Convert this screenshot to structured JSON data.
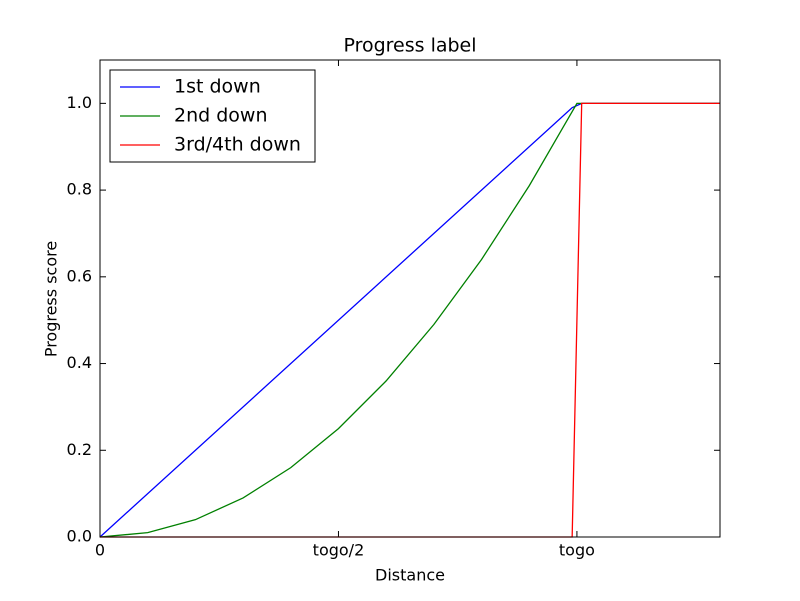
{
  "chart_data": {
    "type": "line",
    "title": "Progress label",
    "x_label": "Distance",
    "y_label": "Progress score",
    "xlim": [
      0,
      1.3
    ],
    "xticks": [
      0,
      {
        "value": 0.5,
        "label": "togo/2"
      },
      {
        "value": 1,
        "label": "togo"
      }
    ],
    "ylim": [
      0,
      1.1
    ],
    "yticks": [
      {
        "value": 0,
        "label": "0.0"
      },
      0.2,
      0.4,
      0.6,
      0.8,
      {
        "value": 1,
        "label": "1.0"
      }
    ],
    "legend": "upper left",
    "series": [
      {
        "name": "1st down",
        "color": "#0000ff",
        "x": [
          0,
          0.99,
          1.01,
          1.3
        ],
        "values": [
          0,
          0.99,
          1,
          1
        ]
      },
      {
        "name": "2nd down",
        "color": "#008000",
        "x": [
          0,
          0.1,
          0.2,
          0.3,
          0.4,
          0.5,
          0.6,
          0.7,
          0.8,
          0.9,
          1,
          1.01,
          1.3
        ],
        "values": [
          0,
          0.01,
          0.04,
          0.09,
          0.16,
          0.25,
          0.36,
          0.49,
          0.64,
          0.81,
          1,
          1,
          1
        ]
      },
      {
        "name": "3rd/4th down",
        "color": "#ff0000",
        "x": [
          0,
          0.99,
          1.01,
          1.3
        ],
        "values": [
          0,
          0,
          1,
          1
        ]
      }
    ]
  }
}
